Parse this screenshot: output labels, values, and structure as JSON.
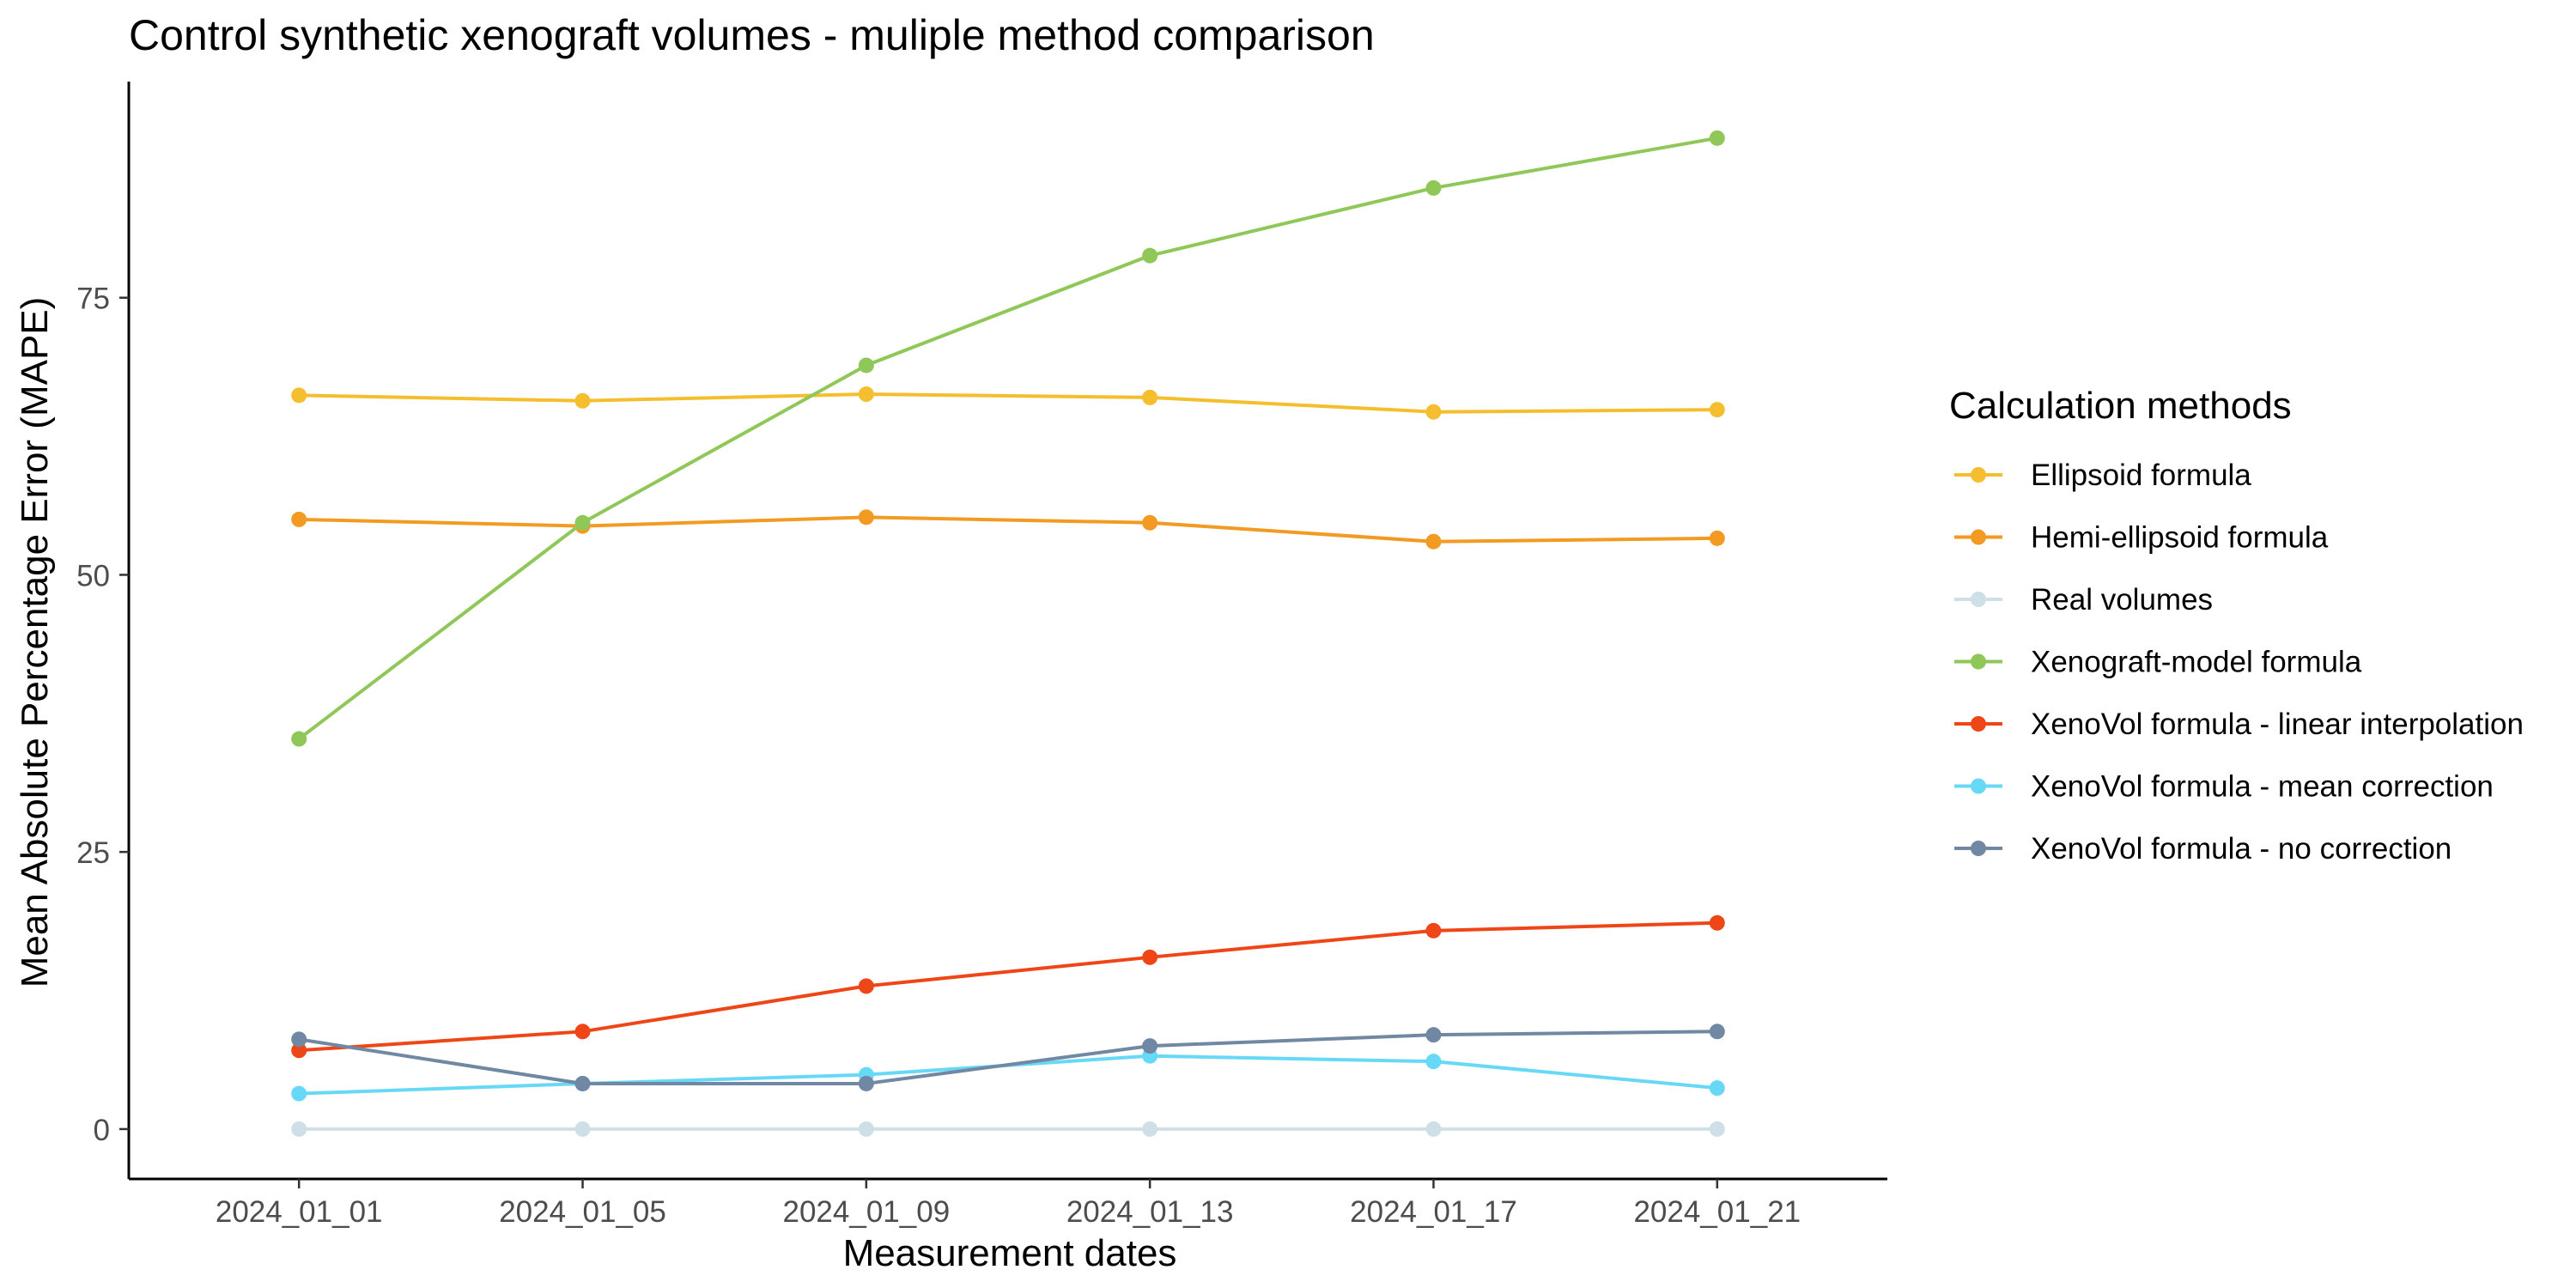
{
  "chart_data": {
    "type": "line",
    "title": "Control synthetic xenograft volumes - muliple method comparison",
    "xlabel": "Measurement dates",
    "ylabel": "Mean Absolute Percentage Error (MAPE)",
    "categories": [
      "2024_01_01",
      "2024_01_05",
      "2024_01_09",
      "2024_01_13",
      "2024_01_17",
      "2024_01_21"
    ],
    "ylim": [
      -4.5,
      94.5
    ],
    "yticks": [
      0,
      25,
      50,
      75
    ],
    "grid": false,
    "legend": {
      "title": "Calculation methods",
      "position": "right"
    },
    "series": [
      {
        "name": "Ellipsoid formula",
        "color": "#F5BE2E",
        "values": [
          66.2,
          65.7,
          66.3,
          66.0,
          64.7,
          64.9
        ]
      },
      {
        "name": "Hemi-ellipsoid formula",
        "color": "#F29A22",
        "values": [
          55.0,
          54.4,
          55.2,
          54.7,
          53.0,
          53.3
        ]
      },
      {
        "name": "Real volumes",
        "color": "#CFDFE7",
        "values": [
          0,
          0,
          0,
          0,
          0,
          0
        ]
      },
      {
        "name": "Xenograft-model formula",
        "color": "#8FC758",
        "values": [
          35.2,
          54.7,
          68.9,
          78.8,
          84.9,
          89.4
        ]
      },
      {
        "name": "XenoVol formula - linear interpolation",
        "color": "#EE4617",
        "values": [
          7.1,
          8.8,
          12.9,
          15.5,
          17.9,
          18.6
        ]
      },
      {
        "name": "XenoVol formula - mean correction",
        "color": "#67D9F6",
        "values": [
          3.2,
          4.1,
          4.9,
          6.6,
          6.1,
          3.7
        ]
      },
      {
        "name": "XenoVol formula - no correction",
        "color": "#7088A3",
        "values": [
          8.1,
          4.1,
          4.1,
          7.5,
          8.5,
          8.8
        ]
      }
    ]
  }
}
